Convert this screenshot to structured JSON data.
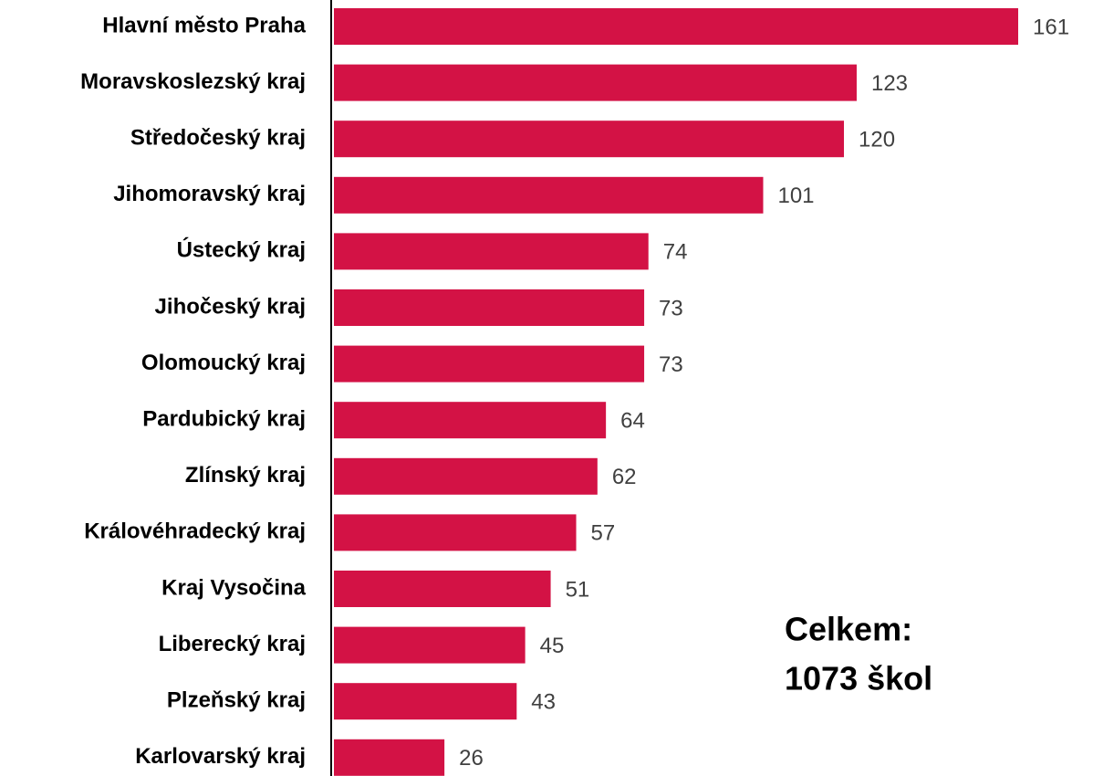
{
  "chart_data": {
    "type": "bar",
    "orientation": "horizontal",
    "categories": [
      "Hlavní město Praha",
      "Moravskoslezský kraj",
      "Středočeský kraj",
      "Jihomoravský kraj",
      "Ústecký kraj",
      "Jihočeský kraj",
      "Olomoucký kraj",
      "Pardubický kraj",
      "Zlínský kraj",
      "Královéhradecký kraj",
      "Kraj Vysočina",
      "Liberecký kraj",
      "Plzeňský kraj",
      "Karlovarský kraj"
    ],
    "values": [
      161,
      123,
      120,
      101,
      74,
      73,
      73,
      64,
      62,
      57,
      51,
      45,
      43,
      26
    ],
    "color": "#d31245",
    "annotation": [
      "Celkem:",
      "1073 škol"
    ]
  }
}
